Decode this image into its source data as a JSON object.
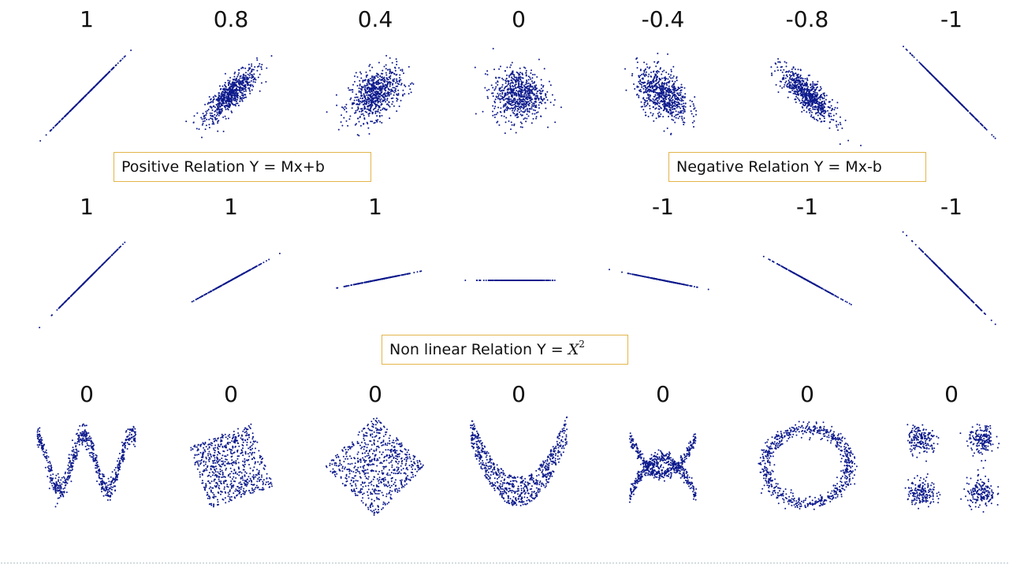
{
  "labels": {
    "positive": "Positive Relation Y = Mx+b",
    "negative": "Negative  Relation Y = Mx-b",
    "nonlinear_prefix": "Non linear Relation Y = ",
    "nonlinear_var": "X",
    "nonlinear_exp": "2"
  },
  "colors": {
    "points": "#0d1a8c",
    "box_border": "#e3b54a"
  },
  "chart_data": [
    {
      "type": "scatter",
      "row": 1,
      "title": "",
      "panels": [
        {
          "coefficient": "1",
          "shape": "linear",
          "r": 1
        },
        {
          "coefficient": "0.8",
          "shape": "linear",
          "r": 0.8
        },
        {
          "coefficient": "0.4",
          "shape": "linear",
          "r": 0.4
        },
        {
          "coefficient": "0",
          "shape": "linear",
          "r": 0
        },
        {
          "coefficient": "-0.4",
          "shape": "linear",
          "r": -0.4
        },
        {
          "coefficient": "-0.8",
          "shape": "linear",
          "r": -0.8
        },
        {
          "coefficient": "-1",
          "shape": "linear",
          "r": -1
        }
      ]
    },
    {
      "type": "scatter",
      "row": 2,
      "title": "",
      "panels": [
        {
          "coefficient": "1",
          "shape": "line",
          "slope": 1
        },
        {
          "coefficient": "1",
          "shape": "line",
          "slope": 0.55
        },
        {
          "coefficient": "1",
          "shape": "line",
          "slope": 0.2
        },
        {
          "coefficient": "",
          "shape": "line",
          "slope": 0
        },
        {
          "coefficient": "-1",
          "shape": "line",
          "slope": -0.2
        },
        {
          "coefficient": "-1",
          "shape": "line",
          "slope": -0.55
        },
        {
          "coefficient": "-1",
          "shape": "line",
          "slope": -1
        }
      ]
    },
    {
      "type": "scatter",
      "row": 3,
      "title": "",
      "panels": [
        {
          "coefficient": "0",
          "shape": "wave"
        },
        {
          "coefficient": "0",
          "shape": "rotated-square"
        },
        {
          "coefficient": "0",
          "shape": "diamond"
        },
        {
          "coefficient": "0",
          "shape": "parabola"
        },
        {
          "coefficient": "0",
          "shape": "x-cross"
        },
        {
          "coefficient": "0",
          "shape": "ring"
        },
        {
          "coefficient": "0",
          "shape": "four-clusters"
        }
      ]
    }
  ]
}
